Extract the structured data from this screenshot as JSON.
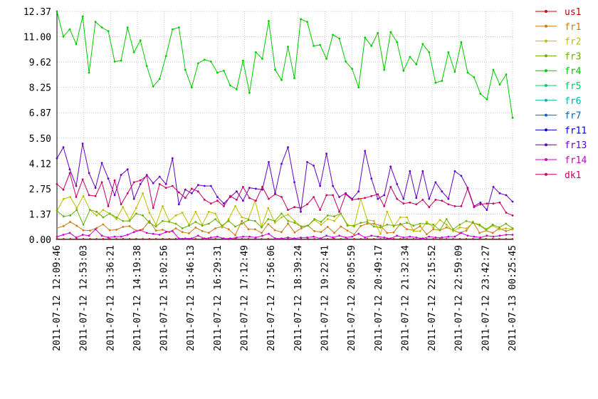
{
  "chart_data": {
    "type": "line",
    "title": "",
    "xlabel": "",
    "ylabel": "",
    "ylim": [
      0,
      12.37
    ],
    "yticks": [
      "0.00",
      "1.37",
      "2.75",
      "4.12",
      "5.50",
      "6.87",
      "8.25",
      "9.62",
      "11.00",
      "12.37"
    ],
    "xticks": [
      "2011-07-12 12:09:46",
      "2011-07-12 12:53:03",
      "2011-07-12 13:36:21",
      "2011-07-12 14:19:38",
      "2011-07-12 15:02:56",
      "2011-07-12 15:46:13",
      "2011-07-12 16:29:31",
      "2011-07-12 17:12:49",
      "2011-07-12 17:56:06",
      "2011-07-12 18:39:24",
      "2011-07-12 19:22:41",
      "2011-07-12 20:05:59",
      "2011-07-12 20:49:17",
      "2011-07-12 21:32:34",
      "2011-07-12 22:15:52",
      "2011-07-12 22:59:09",
      "2011-07-12 23:42:27",
      "2011-07-13 00:25:45"
    ],
    "grid": true,
    "legend_position": "right",
    "series": [
      {
        "name": "us1",
        "color": "#cc0000",
        "values": [
          0.02,
          0.02,
          0.02,
          0.02,
          0.02,
          0.02,
          0.02,
          0.02,
          0.02,
          0.02,
          0.02,
          0.02,
          0.02,
          0.02,
          0.02,
          0.02,
          0.02,
          0.02,
          0.02,
          0.02,
          0.02,
          0.02,
          0.02,
          0.02,
          0.02,
          0.02,
          0.02,
          0.02,
          0.02,
          0.02,
          0.02,
          0.02,
          0.02,
          0.02,
          0.02,
          0.02,
          0.02,
          0.02,
          0.02,
          0.02,
          0.02,
          0.02,
          0.02,
          0.02,
          0.02,
          0.02,
          0.02,
          0.02,
          0.02,
          0.02,
          0.02,
          0.02,
          0.02,
          0.02,
          0.02,
          0.02,
          0.02,
          0.02,
          0.02,
          0.02,
          0.02,
          0.02,
          0.02,
          0.02,
          0.02,
          0.02,
          0.02,
          0.02,
          0.02,
          0.02
        ]
      },
      {
        "name": "fr1",
        "color": "#cc7a1a",
        "values": [
          0.62,
          0.72,
          0.95,
          0.74,
          0.5,
          0.48,
          0.61,
          0.81,
          0.5,
          0.52,
          0.68,
          0.72,
          0.47,
          0.55,
          1.0,
          0.48,
          0.52,
          0.4,
          0.6,
          0.4,
          0.33,
          0.64,
          0.45,
          0.36,
          0.6,
          0.7,
          0.55,
          0.23,
          1.0,
          0.55,
          0.55,
          0.35,
          0.83,
          0.5,
          0.4,
          0.86,
          0.38,
          0.6,
          0.75,
          0.45,
          0.4,
          0.68,
          0.35,
          0.7,
          0.48,
          0.27,
          0.73,
          0.85,
          0.85,
          0.75,
          0.35,
          0.38,
          0.85,
          0.55,
          0.5,
          0.72,
          0.28,
          0.55,
          0.5,
          0.65,
          0.5,
          0.35,
          0.48,
          0.95,
          0.35,
          0.48,
          0.35,
          0.6,
          0.45,
          0.55
        ]
      },
      {
        "name": "fr2",
        "color": "#bfbf00",
        "values": [
          1.55,
          2.2,
          2.3,
          1.7,
          2.35,
          1.6,
          1.3,
          1.6,
          1.4,
          1.1,
          1.75,
          1.05,
          1.7,
          2.5,
          1.45,
          0.8,
          1.8,
          1.0,
          1.3,
          1.45,
          0.8,
          1.5,
          0.8,
          1.5,
          1.4,
          0.65,
          1.1,
          1.8,
          1.2,
          1.1,
          2.1,
          0.7,
          1.7,
          0.9,
          1.2,
          1.35,
          1.0,
          0.7,
          0.75,
          1.05,
          0.8,
          1.1,
          1.0,
          1.4,
          0.8,
          0.7,
          2.2,
          1.05,
          1.0,
          0.3,
          1.5,
          0.7,
          1.2,
          1.2,
          0.45,
          0.45,
          0.95,
          0.65,
          1.05,
          0.8,
          0.45,
          0.65,
          0.6,
          0.9,
          0.75,
          0.5,
          0.75,
          0.55,
          0.6,
          0.55
        ]
      },
      {
        "name": "fr3",
        "color": "#66b200",
        "values": [
          1.55,
          1.25,
          1.3,
          1.6,
          0.8,
          1.6,
          1.5,
          1.2,
          1.4,
          1.2,
          1.0,
          1.0,
          1.4,
          1.3,
          0.9,
          0.7,
          1.0,
          0.95,
          0.85,
          0.6,
          0.75,
          0.95,
          0.75,
          0.85,
          1.1,
          0.75,
          1.0,
          0.7,
          0.85,
          1.05,
          1.0,
          0.65,
          1.1,
          1.0,
          1.4,
          1.0,
          0.9,
          0.7,
          0.75,
          1.1,
          0.95,
          1.3,
          1.25,
          1.4,
          0.75,
          0.75,
          0.9,
          0.95,
          0.7,
          0.65,
          0.8,
          0.75,
          0.8,
          0.9,
          0.75,
          0.85,
          0.85,
          0.8,
          0.5,
          1.1,
          0.55,
          0.8,
          1.0,
          0.9,
          0.8,
          0.55,
          0.8,
          0.65,
          0.85,
          0.6
        ]
      },
      {
        "name": "fr4",
        "color": "#00cc00",
        "values": [
          12.37,
          11.0,
          11.4,
          10.6,
          12.1,
          9.05,
          11.8,
          11.5,
          11.3,
          9.65,
          9.7,
          11.5,
          10.15,
          10.8,
          9.4,
          8.3,
          8.7,
          9.95,
          11.4,
          11.5,
          9.2,
          8.25,
          9.55,
          9.75,
          9.65,
          9.05,
          9.15,
          8.35,
          8.15,
          9.7,
          7.95,
          10.15,
          9.8,
          11.85,
          9.2,
          8.65,
          10.45,
          8.75,
          11.95,
          11.8,
          10.5,
          10.55,
          9.8,
          11.1,
          10.9,
          9.65,
          9.25,
          8.25,
          10.95,
          10.5,
          11.2,
          9.2,
          11.25,
          10.7,
          9.15,
          9.9,
          9.5,
          10.6,
          10.15,
          8.5,
          8.6,
          10.15,
          9.1,
          10.7,
          9.05,
          8.8,
          7.9,
          7.6,
          9.2,
          8.4,
          8.95,
          6.6
        ]
      },
      {
        "name": "fr5",
        "color": "#00cc66",
        "values": []
      },
      {
        "name": "fr6",
        "color": "#00b2b2",
        "values": []
      },
      {
        "name": "fr7",
        "color": "#0066cc",
        "values": []
      },
      {
        "name": "fr11",
        "color": "#0000cc",
        "values": []
      },
      {
        "name": "fr13",
        "color": "#6600cc",
        "values": [
          4.4,
          5.0,
          3.8,
          2.9,
          5.2,
          3.6,
          2.8,
          4.15,
          3.3,
          2.4,
          3.5,
          3.8,
          2.2,
          3.0,
          3.5,
          3.05,
          3.4,
          3.0,
          4.4,
          1.9,
          2.7,
          2.5,
          2.95,
          2.9,
          2.9,
          2.3,
          1.95,
          2.3,
          2.6,
          2.1,
          2.8,
          2.75,
          2.7,
          4.2,
          2.5,
          4.1,
          5.0,
          3.1,
          1.5,
          4.2,
          4.0,
          2.9,
          4.65,
          2.9,
          2.3,
          2.5,
          2.2,
          2.6,
          4.8,
          3.3,
          2.2,
          2.4,
          3.95,
          3.0,
          2.2,
          3.7,
          2.25,
          3.7,
          2.2,
          3.1,
          2.6,
          2.2,
          3.7,
          3.45,
          2.8,
          1.8,
          2.0,
          1.6,
          2.85,
          2.5,
          2.4,
          2.05
        ]
      },
      {
        "name": "fr14",
        "color": "#cc00cc",
        "values": [
          0.15,
          0.25,
          0.35,
          0.1,
          0.25,
          0.2,
          0.55,
          0.2,
          0.1,
          0.15,
          0.15,
          0.25,
          0.4,
          0.5,
          0.35,
          0.3,
          0.25,
          0.4,
          0.45,
          0.05,
          0.05,
          0.05,
          0.2,
          0.05,
          0.1,
          0.15,
          0.05,
          0.05,
          0.1,
          0.15,
          0.15,
          0.1,
          0.2,
          0.3,
          0.05,
          0.05,
          0.1,
          0.05,
          0.1,
          0.1,
          0.15,
          0.05,
          0.2,
          0.1,
          0.2,
          0.1,
          0.15,
          0.3,
          0.1,
          0.2,
          0.15,
          0.1,
          0.05,
          0.2,
          0.1,
          0.15,
          0.1,
          0.05,
          0.15,
          0.1,
          0.1,
          0.15,
          0.15,
          0.35,
          0.2,
          0.15,
          0.1,
          0.2,
          0.15,
          0.2,
          0.25,
          0.25
        ]
      },
      {
        "name": "dk1",
        "color": "#cc0066",
        "values": [
          3.0,
          2.7,
          3.6,
          2.3,
          3.25,
          2.4,
          2.35,
          3.1,
          1.8,
          3.2,
          1.9,
          2.5,
          3.1,
          3.2,
          3.45,
          1.7,
          3.0,
          2.8,
          2.9,
          2.55,
          2.25,
          2.75,
          2.6,
          2.15,
          1.95,
          2.1,
          1.8,
          2.35,
          2.15,
          2.85,
          2.25,
          2.1,
          2.85,
          2.2,
          2.45,
          2.3,
          1.6,
          1.75,
          1.7,
          1.9,
          2.3,
          1.6,
          2.4,
          2.4,
          1.5,
          2.45,
          2.15,
          2.2,
          2.25,
          2.35,
          2.45,
          1.8,
          2.85,
          2.2,
          1.95,
          2.0,
          1.9,
          2.15,
          1.75,
          2.15,
          2.1,
          1.9,
          1.8,
          1.8,
          2.75,
          1.75,
          1.9,
          1.95,
          1.95,
          2.0,
          1.45,
          1.3
        ]
      }
    ]
  }
}
